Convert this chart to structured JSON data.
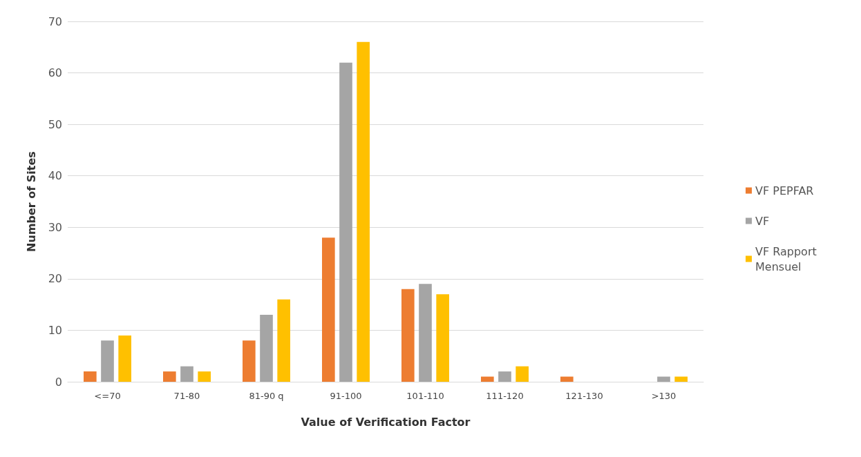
{
  "chart_data": {
    "type": "bar",
    "xlabel": "Value of Verification Factor",
    "ylabel": "Number of Sites",
    "categories": [
      "<=70",
      "71-80",
      "81-90 q",
      "91-100",
      "101-110",
      "111-120",
      "121-130",
      ">130"
    ],
    "series": [
      {
        "name": "VF PEPFAR",
        "color": "#ed7d31",
        "values": [
          2,
          2,
          8,
          28,
          18,
          1,
          1,
          0
        ]
      },
      {
        "name": "VF",
        "color": "#a5a5a5",
        "values": [
          8,
          3,
          13,
          62,
          19,
          2,
          0,
          1
        ]
      },
      {
        "name": "VF Rapport Mensuel",
        "color": "#ffc000",
        "values": [
          9,
          2,
          16,
          66,
          17,
          3,
          0,
          1
        ]
      }
    ],
    "ylim": [
      0,
      70
    ],
    "yticks": [
      0,
      10,
      20,
      30,
      40,
      50,
      60,
      70
    ],
    "grid": "y",
    "legend": "right"
  }
}
